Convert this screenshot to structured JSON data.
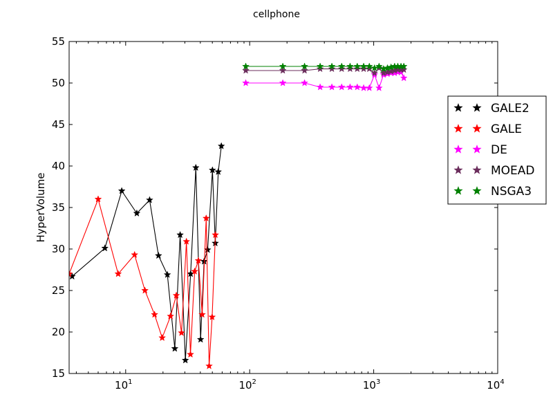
{
  "chart_data": {
    "type": "line",
    "title": "cellphone",
    "xlabel": "",
    "ylabel": "HyperVolume",
    "xscale": "log",
    "xlim": [
      3.5,
      10000
    ],
    "ylim": [
      15,
      55
    ],
    "grid": false,
    "legend_position": "right, outside the axes",
    "x_ticks": [
      {
        "value": 10,
        "base": "10",
        "exp": "1"
      },
      {
        "value": 100,
        "base": "10",
        "exp": "2"
      },
      {
        "value": 1000,
        "base": "10",
        "exp": "3"
      },
      {
        "value": 10000,
        "base": "10",
        "exp": "4"
      }
    ],
    "y_ticks": [
      {
        "value": 15,
        "label": "15"
      },
      {
        "value": 20,
        "label": "20"
      },
      {
        "value": 25,
        "label": "25"
      },
      {
        "value": 30,
        "label": "30"
      },
      {
        "value": 35,
        "label": "35"
      },
      {
        "value": 40,
        "label": "40"
      },
      {
        "value": 45,
        "label": "45"
      },
      {
        "value": 50,
        "label": "50"
      },
      {
        "value": 55,
        "label": "55"
      }
    ],
    "series": [
      {
        "name": "GALE2",
        "color": "#000000",
        "x": [
          3.7,
          6.8,
          9.3,
          12.3,
          15.6,
          18.4,
          21.7,
          24.9,
          27.5,
          30.3,
          33.4,
          36.8,
          40.2,
          42.9,
          45.8,
          50.1,
          52.8,
          55.8,
          59.1
        ],
        "y": [
          26.7,
          30.1,
          37.0,
          34.3,
          35.9,
          29.2,
          26.9,
          18.0,
          31.7,
          16.6,
          27.0,
          39.8,
          19.1,
          28.5,
          29.9,
          39.5,
          30.7,
          39.3,
          42.4
        ]
      },
      {
        "name": "GALE",
        "color": "#ff0000",
        "x": [
          3.5,
          6.0,
          8.7,
          11.8,
          14.3,
          17.1,
          19.7,
          23.0,
          25.6,
          28.2,
          30.9,
          33.3,
          36.0,
          38.6,
          41.4,
          44.6,
          47.1,
          49.8,
          52.9
        ],
        "y": [
          27.0,
          36.0,
          27.0,
          29.3,
          25.0,
          22.1,
          19.3,
          21.9,
          24.4,
          19.9,
          30.9,
          17.3,
          27.3,
          28.6,
          22.1,
          33.7,
          15.9,
          21.8,
          31.7
        ]
      },
      {
        "name": "DE",
        "color": "#ff00ff",
        "x": [
          93,
          185,
          277,
          370,
          460,
          552,
          645,
          737,
          830,
          922,
          1015,
          1105,
          1200,
          1290,
          1380,
          1475,
          1565,
          1660,
          1750
        ],
        "y": [
          50.0,
          50.0,
          50.0,
          49.5,
          49.5,
          49.5,
          49.5,
          49.5,
          49.4,
          49.4,
          51.0,
          49.4,
          51.0,
          51.1,
          51.2,
          51.2,
          51.3,
          51.3,
          50.6
        ]
      },
      {
        "name": "MOEAD",
        "color": "#6b2d5c",
        "x": [
          93,
          185,
          277,
          370,
          460,
          552,
          645,
          737,
          830,
          922,
          1015,
          1105,
          1200,
          1290,
          1380,
          1475,
          1565,
          1660,
          1750
        ],
        "y": [
          51.5,
          51.5,
          51.5,
          51.7,
          51.7,
          51.7,
          51.7,
          51.7,
          51.7,
          51.7,
          51.2,
          51.8,
          51.2,
          51.3,
          51.4,
          51.5,
          51.6,
          51.6,
          51.6
        ]
      },
      {
        "name": "NSGA3",
        "color": "#008000",
        "x": [
          93,
          185,
          277,
          370,
          460,
          552,
          645,
          737,
          830,
          922,
          1015,
          1105,
          1200,
          1290,
          1380,
          1475,
          1565,
          1660,
          1750
        ],
        "y": [
          52.0,
          52.0,
          52.0,
          52.0,
          52.0,
          52.0,
          52.0,
          52.0,
          52.0,
          52.0,
          51.8,
          52.0,
          51.7,
          51.8,
          51.9,
          52.0,
          52.0,
          52.0,
          52.0
        ]
      }
    ]
  }
}
